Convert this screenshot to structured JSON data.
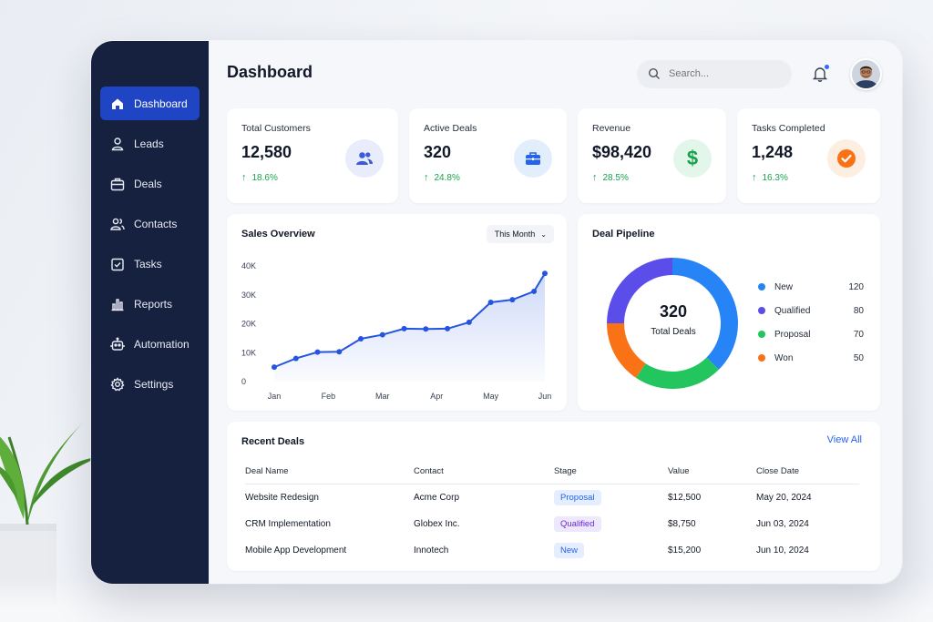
{
  "sidebar": {
    "items": [
      {
        "label": "Dashboard",
        "icon": "home-icon",
        "active": true
      },
      {
        "label": "Leads",
        "icon": "user-icon"
      },
      {
        "label": "Deals",
        "icon": "briefcase-icon"
      },
      {
        "label": "Contacts",
        "icon": "users-icon"
      },
      {
        "label": "Tasks",
        "icon": "checkbox-icon"
      },
      {
        "label": "Reports",
        "icon": "bar-chart-icon"
      },
      {
        "label": "Automation",
        "icon": "robot-icon"
      },
      {
        "label": "Settings",
        "icon": "gear-icon"
      }
    ]
  },
  "header": {
    "title": "Dashboard",
    "search_placeholder": "Search..."
  },
  "kpis": [
    {
      "label": "Total Customers",
      "value": "12,580",
      "delta": "18.6%",
      "icon": "users-icon",
      "icon_bg": "#e8ecfb",
      "icon_color": "#3b5bdb"
    },
    {
      "label": "Active Deals",
      "value": "320",
      "delta": "24.8%",
      "icon": "briefcase-icon",
      "icon_bg": "#e3eefd",
      "icon_color": "#2563eb"
    },
    {
      "label": "Revenue",
      "value": "$98,420",
      "delta": "28.5%",
      "icon": "dollar-icon",
      "icon_bg": "#e3f6ea",
      "icon_color": "#16a34a"
    },
    {
      "label": "Tasks Completed",
      "value": "1,248",
      "delta": "16.3%",
      "icon": "check-circle-icon",
      "icon_bg": "#fdeee2",
      "icon_color": "#f97316"
    }
  ],
  "sales_overview": {
    "title": "Sales Overview",
    "period": "This Month"
  },
  "deal_pipeline": {
    "title": "Deal Pipeline",
    "total": "320",
    "total_label": "Total Deals"
  },
  "recent_deals": {
    "title": "Recent Deals",
    "view_all": "View All",
    "columns": [
      "Deal Name",
      "Contact",
      "Stage",
      "Value",
      "Close Date"
    ],
    "rows": [
      {
        "name": "Website Redesign",
        "contact": "Acme Corp",
        "stage": "Proposal",
        "value": "$12,500",
        "date": "May 20, 2024"
      },
      {
        "name": "CRM Implementation",
        "contact": "Globex Inc.",
        "stage": "Qualified",
        "value": "$8,750",
        "date": "Jun 03, 2024"
      },
      {
        "name": "Mobile App Development",
        "contact": "Innotech",
        "stage": "New",
        "value": "$15,200",
        "date": "Jun 10, 2024"
      }
    ]
  },
  "stage_colors": {
    "Proposal": {
      "bg": "#e4eefe",
      "fg": "#2563eb"
    },
    "Qualified": {
      "bg": "#ede8fb",
      "fg": "#6d28d9"
    },
    "New": {
      "bg": "#e4eefe",
      "fg": "#2563eb"
    }
  },
  "chart_data": [
    {
      "type": "area",
      "categories": [
        "Jan",
        "Feb",
        "Mar",
        "Apr",
        "May",
        "Jun"
      ],
      "x": [
        0,
        0.4,
        0.8,
        1.2,
        1.6,
        2.0,
        2.4,
        2.8,
        3.2,
        3.6,
        4.0,
        4.4,
        4.8,
        5.0
      ],
      "y": [
        5000,
        8000,
        10200,
        10300,
        14800,
        16200,
        18300,
        18200,
        18300,
        20500,
        27400,
        28300,
        31200,
        37400
      ],
      "yticks": [
        "40K",
        "30K",
        "20K",
        "10K",
        "0"
      ],
      "ylim": [
        0,
        40000
      ],
      "color": "#2455e0",
      "grid": false,
      "title": "Sales Overview"
    },
    {
      "type": "pie",
      "title": "Deal Pipeline",
      "donut": true,
      "labels": [
        "New",
        "Qualified",
        "Proposal",
        "Won"
      ],
      "values": [
        120,
        80,
        70,
        50
      ],
      "colors": [
        "#2684f6",
        "#5b4dea",
        "#22c55e",
        "#f97316"
      ],
      "slice_order": [
        "New",
        "Proposal",
        "Won",
        "Qualified"
      ],
      "legend": "right"
    }
  ]
}
